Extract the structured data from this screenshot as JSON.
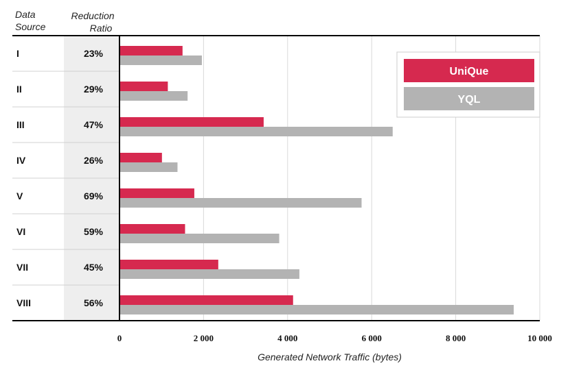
{
  "headers": {
    "source_line1": "Data",
    "source_line2": "Source",
    "ratio_line1": "Reduction",
    "ratio_line2": "Ratio"
  },
  "chart_data": {
    "type": "bar",
    "orientation": "horizontal",
    "categories": [
      "I",
      "II",
      "III",
      "IV",
      "V",
      "VI",
      "VII",
      "VIII"
    ],
    "reduction_ratios": [
      "23%",
      "29%",
      "47%",
      "26%",
      "69%",
      "59%",
      "45%",
      "56%"
    ],
    "series": [
      {
        "name": "UniQue",
        "color": "#d6294f",
        "values": [
          1500,
          1150,
          3430,
          1010,
          1780,
          1560,
          2350,
          4130
        ]
      },
      {
        "name": "YQL",
        "color": "#b3b3b3",
        "values": [
          1960,
          1620,
          6500,
          1380,
          5760,
          3800,
          4280,
          9380
        ]
      }
    ],
    "xlabel": "Generated Network Traffic (bytes)",
    "xlim": [
      0,
      10000
    ],
    "xticks": [
      0,
      2000,
      4000,
      6000,
      8000,
      10000
    ],
    "xtick_labels": [
      "0",
      "2 000",
      "4 000",
      "6 000",
      "8 000",
      "10 000"
    ],
    "grid": "vertical",
    "legend_position": "top-right"
  }
}
